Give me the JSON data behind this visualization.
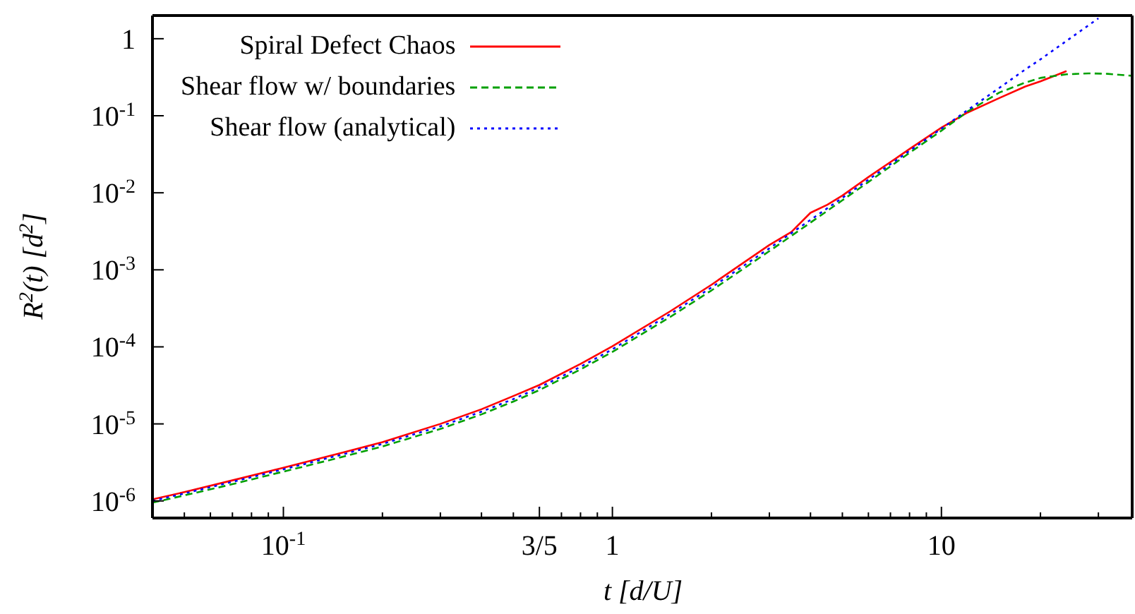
{
  "chart_data": {
    "type": "line",
    "xlabel": "t [d/U]",
    "ylabel": "R$^{2}$(t) [d$^{2}$]",
    "log": "xy",
    "legend": "top left",
    "marker": "none",
    "xlim": [
      0.04,
      38
    ],
    "ylim": [
      6e-07,
      2
    ],
    "xticks": [
      {
        "value": 0.05,
        "label": null
      },
      {
        "value": 0.06,
        "label": null
      },
      {
        "value": 0.07,
        "label": null
      },
      {
        "value": 0.08,
        "label": null
      },
      {
        "value": 0.09,
        "label": null
      },
      {
        "value": 0.1,
        "label": "10$^{-1}$"
      },
      {
        "value": 0.2,
        "label": null
      },
      {
        "value": 0.3,
        "label": null
      },
      {
        "value": 0.4,
        "label": null
      },
      {
        "value": 0.5,
        "label": null
      },
      {
        "value": 0.6,
        "label": "3/5"
      },
      {
        "value": 0.7,
        "label": null
      },
      {
        "value": 0.8,
        "label": null
      },
      {
        "value": 0.9,
        "label": null
      },
      {
        "value": 1,
        "label": "1"
      },
      {
        "value": 2,
        "label": null
      },
      {
        "value": 3,
        "label": null
      },
      {
        "value": 4,
        "label": null
      },
      {
        "value": 5,
        "label": null
      },
      {
        "value": 6,
        "label": null
      },
      {
        "value": 7,
        "label": null
      },
      {
        "value": 8,
        "label": null
      },
      {
        "value": 9,
        "label": null
      },
      {
        "value": 10,
        "label": "10"
      },
      {
        "value": 20,
        "label": null
      },
      {
        "value": 30,
        "label": null
      }
    ],
    "yticks": [
      {
        "value": 1e-06,
        "label": "10$^{-6}$"
      },
      {
        "value": 1e-05,
        "label": "10$^{-5}$"
      },
      {
        "value": 0.0001,
        "label": "10$^{-4}$"
      },
      {
        "value": 0.001,
        "label": "10$^{-3}$"
      },
      {
        "value": 0.01,
        "label": "10$^{-2}$"
      },
      {
        "value": 0.1,
        "label": "10$^{-1}$"
      },
      {
        "value": 1,
        "label": "1"
      }
    ],
    "series": [
      {
        "name": "Spiral Defect Chaos",
        "color": "#ff0000",
        "line_style": "solid",
        "x": [
          0.04,
          0.05,
          0.07,
          0.1,
          0.15,
          0.2,
          0.3,
          0.4,
          0.5,
          0.6,
          0.8,
          1,
          1.5,
          2,
          3,
          3.5,
          4,
          4.5,
          5,
          6,
          8,
          10,
          12,
          15,
          18,
          20,
          24
        ],
        "values": [
          1.05e-06,
          1.3e-06,
          1.85e-06,
          2.7e-06,
          4.2e-06,
          5.8e-06,
          1e-05,
          1.55e-05,
          2.3e-05,
          3.2e-05,
          6e-05,
          0.000102,
          0.00029,
          0.00064,
          0.0021,
          0.0031,
          0.0055,
          0.007,
          0.0092,
          0.016,
          0.037,
          0.07,
          0.11,
          0.17,
          0.24,
          0.28,
          0.38
        ]
      },
      {
        "name": "Shear flow w/ boundaries",
        "color": "#00a000",
        "line_style": "dashed",
        "x": [
          0.04,
          0.05,
          0.07,
          0.1,
          0.15,
          0.2,
          0.3,
          0.4,
          0.5,
          0.6,
          0.8,
          1,
          1.5,
          2,
          3,
          4,
          5,
          6,
          8,
          10,
          12,
          15,
          18,
          20,
          24,
          28,
          32,
          38
        ],
        "values": [
          9.5e-07,
          1.18e-06,
          1.65e-06,
          2.4e-06,
          3.7e-06,
          5.1e-06,
          8.6e-06,
          1.33e-05,
          1.95e-05,
          2.75e-05,
          5.1e-05,
          8.6e-05,
          0.000245,
          0.00054,
          0.00175,
          0.0041,
          0.008,
          0.0138,
          0.033,
          0.064,
          0.113,
          0.2,
          0.27,
          0.31,
          0.345,
          0.355,
          0.35,
          0.33
        ]
      },
      {
        "name": "Shear flow (analytical)",
        "color": "#0000ff",
        "line_style": "dotted",
        "x": [
          0.04,
          0.05,
          0.07,
          0.1,
          0.15,
          0.2,
          0.3,
          0.4,
          0.5,
          0.6,
          0.8,
          1,
          1.5,
          2,
          3,
          4,
          5,
          6,
          8,
          10,
          12,
          15,
          18,
          20,
          25,
          30
        ],
        "values": [
          1e-06,
          1.25e-06,
          1.77e-06,
          2.57e-06,
          3.98e-06,
          5.5e-06,
          9.3e-06,
          1.44e-05,
          2.1e-05,
          2.97e-05,
          5.5e-05,
          9.3e-05,
          0.000267,
          0.00059,
          0.0019,
          0.00445,
          0.0086,
          0.0148,
          0.035,
          0.068,
          0.118,
          0.23,
          0.4,
          0.54,
          1.06,
          1.84
        ]
      }
    ]
  }
}
